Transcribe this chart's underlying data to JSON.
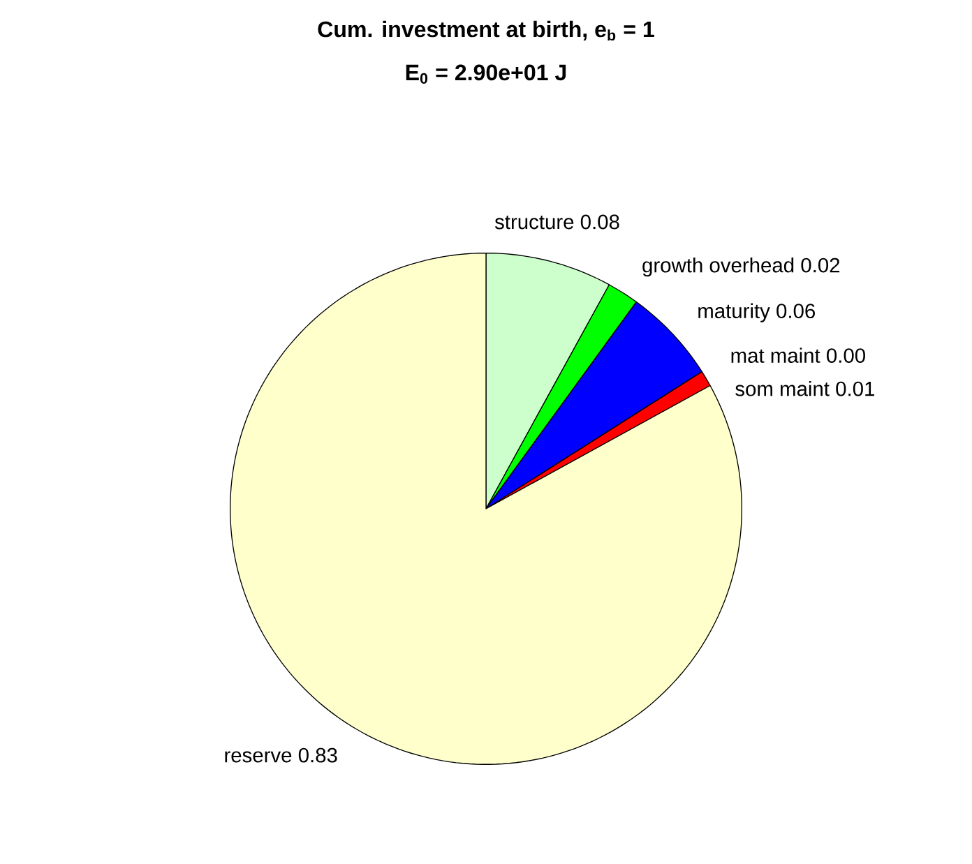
{
  "chart_data": {
    "type": "pie",
    "title": "Cum. investment at birth, e$_{b}$ = 1",
    "subtitle": "E$_{0}$ = 2.90e+01 J",
    "categories": [
      "structure",
      "growth overhead",
      "maturity",
      "mat maint",
      "som maint",
      "reserve"
    ],
    "values": [
      0.08,
      0.02,
      0.06,
      0.0,
      0.01,
      0.83
    ],
    "value_labels": [
      "0.08",
      "0.02",
      "0.06",
      "0.00",
      "0.01",
      "0.83"
    ],
    "colors": [
      "#ccffcc",
      "#00ff00",
      "#0000ff",
      "#ff00ff",
      "#ff0000",
      "#ffffcc"
    ]
  }
}
